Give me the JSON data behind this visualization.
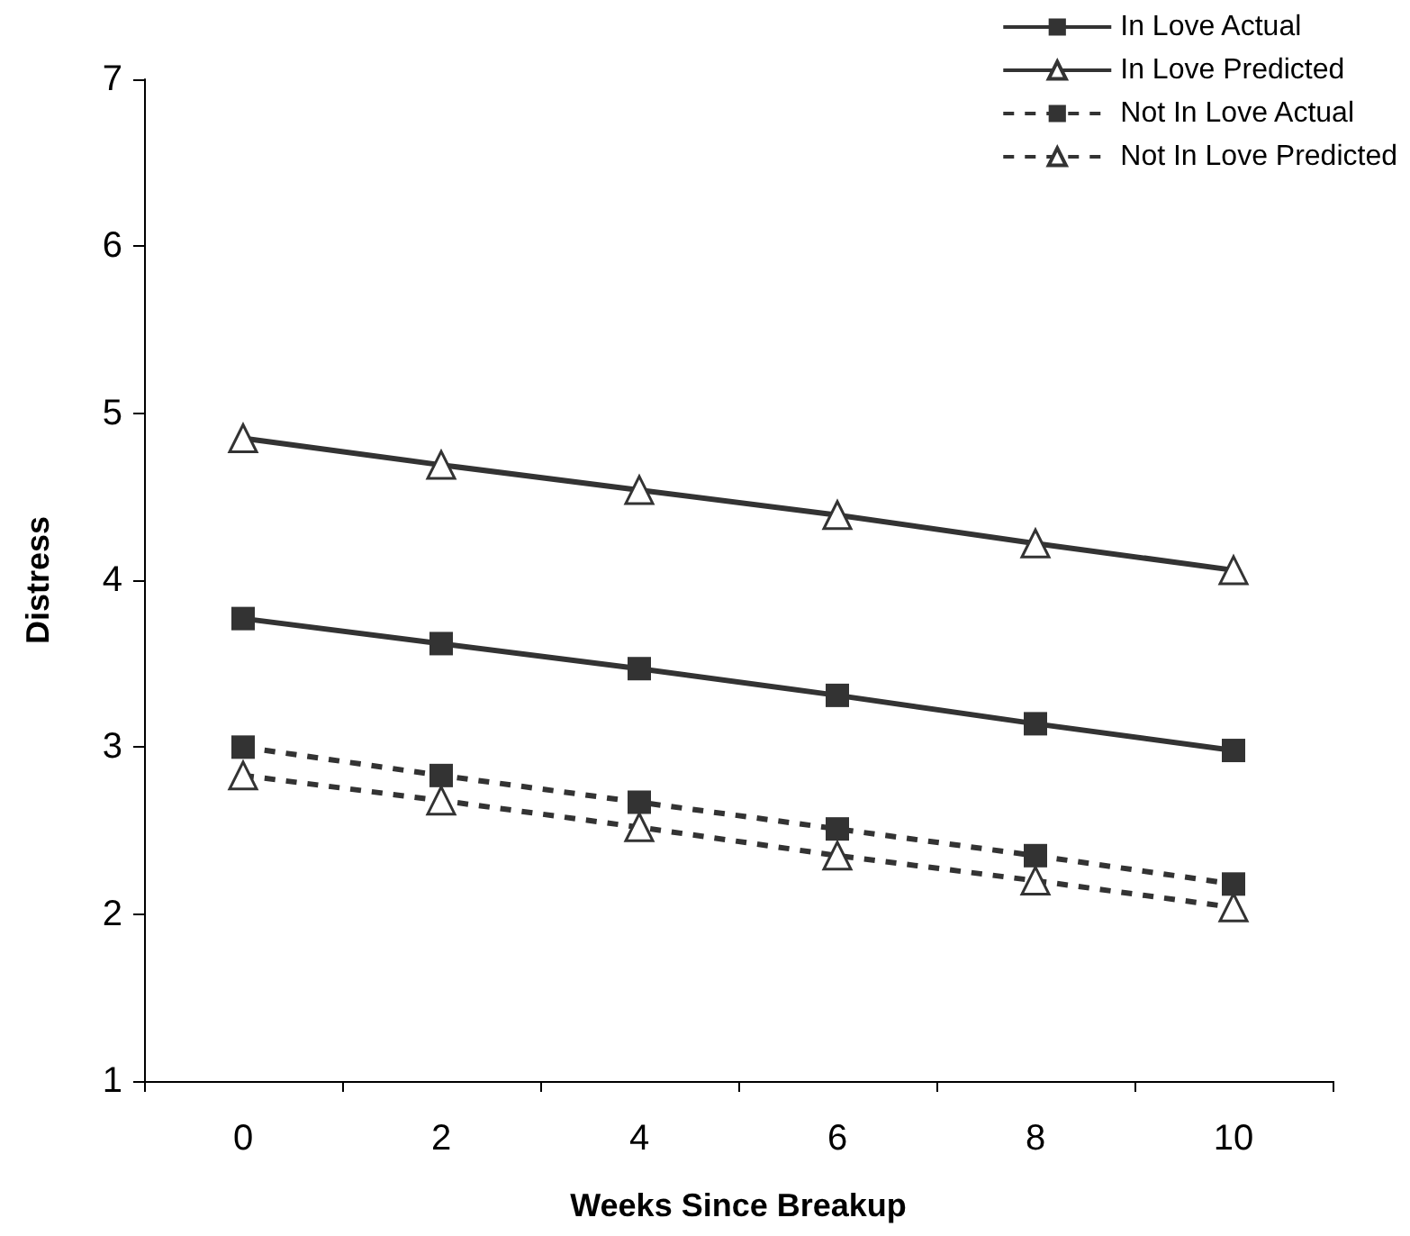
{
  "chart_data": {
    "type": "line",
    "xlabel": "Weeks Since Breakup",
    "ylabel": "Distress",
    "categories": [
      "0",
      "2",
      "4",
      "6",
      "8",
      "10"
    ],
    "ylim": [
      1,
      7
    ],
    "yticks": [
      1,
      2,
      3,
      4,
      5,
      6,
      7
    ],
    "grid": false,
    "legend": "top right",
    "series": [
      {
        "name": "In Love Actual",
        "color": "#333333",
        "marker": "square",
        "line_style": "solid",
        "values": [
          3.77,
          3.62,
          3.47,
          3.31,
          3.14,
          2.98
        ]
      },
      {
        "name": "In Love Predicted",
        "color": "#333333",
        "marker": "triangle",
        "line_style": "solid",
        "values": [
          4.85,
          4.69,
          4.54,
          4.39,
          4.22,
          4.06
        ]
      },
      {
        "name": "Not In Love Actual",
        "color": "#333333",
        "marker": "square",
        "line_style": "dashed",
        "values": [
          3.0,
          2.83,
          2.67,
          2.51,
          2.35,
          2.18
        ]
      },
      {
        "name": "Not In Love Predicted",
        "color": "#333333",
        "marker": "triangle",
        "line_style": "dashed",
        "values": [
          2.83,
          2.68,
          2.52,
          2.35,
          2.2,
          2.04
        ]
      }
    ]
  }
}
